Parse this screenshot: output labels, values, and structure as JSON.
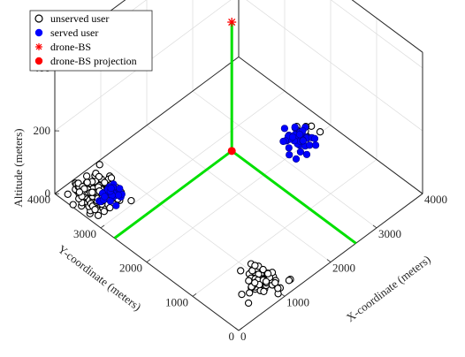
{
  "chart_data": {
    "type": "scatter",
    "projection": "3d-isometric",
    "title": "",
    "xlabel": "X-coordinate (meters)",
    "ylabel": "Y-coordinate (meters)",
    "zlabel": "Altitude (meters)",
    "xlim": [
      0,
      4000
    ],
    "ylim": [
      0,
      4000
    ],
    "zlim": [
      0,
      450
    ],
    "xticks": [
      "0",
      "1000",
      "2000",
      "3000",
      "4000"
    ],
    "yticks": [
      "0",
      "1000",
      "2000",
      "3000",
      "4000"
    ],
    "zticks": [
      "0",
      "200",
      "400"
    ],
    "grid": true,
    "legend_position": "top-left",
    "legend": [
      {
        "label": "unserved user",
        "marker": "open-circle",
        "color": "#000000"
      },
      {
        "label": "served user",
        "marker": "filled-circle",
        "color": "#0000ff"
      },
      {
        "label": "drone-BS",
        "marker": "asterisk",
        "color": "#ff0000"
      },
      {
        "label": "drone-BS projection",
        "marker": "filled-circle",
        "color": "#ff0000"
      }
    ],
    "series": [
      {
        "name": "unserved user",
        "color": "#000000",
        "clusters": [
          {
            "x_center": 500,
            "y_center": 3500,
            "spread": 300,
            "count": 190
          },
          {
            "x_center": 1000,
            "y_center": 500,
            "spread": 280,
            "count": 70
          },
          {
            "x_center": 3600,
            "y_center": 2200,
            "spread": 200,
            "count": 10
          }
        ]
      },
      {
        "name": "served user",
        "color": "#0000ff",
        "clusters": [
          {
            "x_center": 600,
            "y_center": 3400,
            "spread": 180,
            "count": 30
          },
          {
            "x_center": 3450,
            "y_center": 2100,
            "spread": 250,
            "count": 40
          }
        ]
      },
      {
        "name": "drone-BS",
        "color": "#ff0000",
        "points": [
          {
            "x": 2550,
            "y": 2700,
            "z": 410
          }
        ]
      },
      {
        "name": "drone-BS projection",
        "color": "#ff0000",
        "points": [
          {
            "x": 2550,
            "y": 2700,
            "z": 0
          }
        ]
      }
    ],
    "guide_lines": {
      "color": "#00e000"
    }
  }
}
